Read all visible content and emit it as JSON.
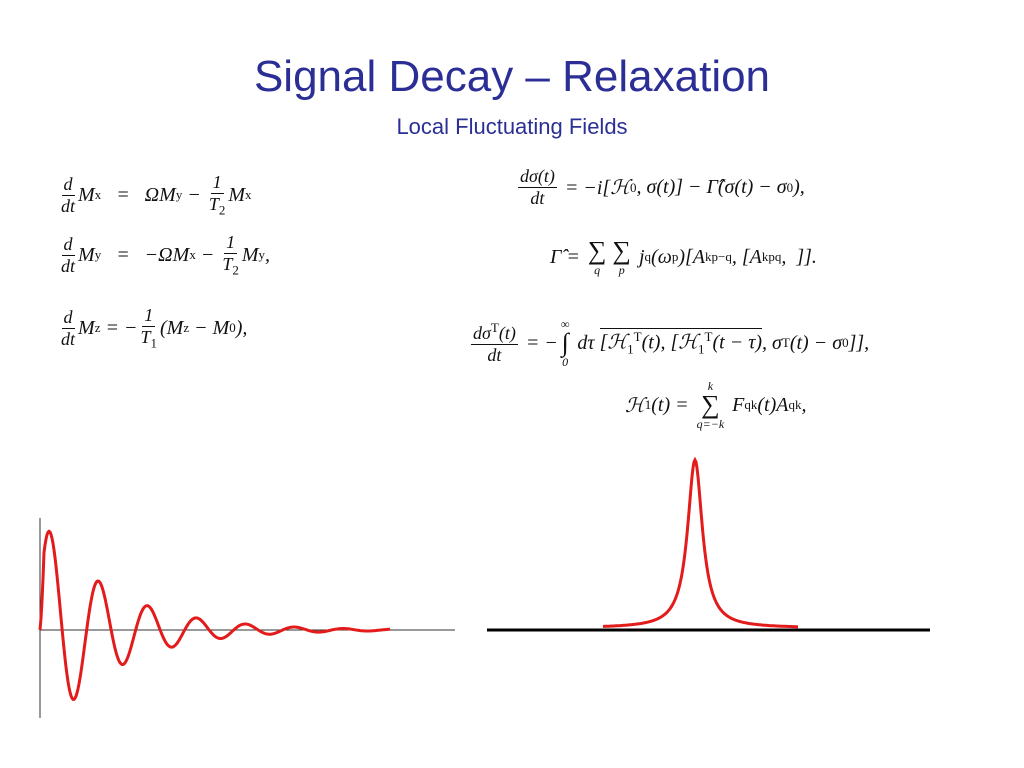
{
  "header": {
    "title": "Signal Decay – Relaxation",
    "subtitle": "Local Fluctuating Fields"
  },
  "equations_left": [
    [
      {
        "frac": [
          "d"
        ],
        "over": [
          "dt"
        ]
      },
      "M",
      {
        "sub": "x"
      },
      "   =   ΩM",
      {
        "sub": "y"
      },
      " − ",
      {
        "frac": [
          "1"
        ],
        "over": [
          "T",
          {
            "sub": "2"
          }
        ]
      },
      "M",
      {
        "sub": "x"
      }
    ],
    [
      {
        "frac": [
          "d"
        ],
        "over": [
          "dt"
        ]
      },
      "M",
      {
        "sub": "y"
      },
      "   =   −ΩM",
      {
        "sub": "x"
      },
      " − ",
      {
        "frac": [
          "1"
        ],
        "over": [
          "T",
          {
            "sub": "2"
          }
        ]
      },
      "M",
      {
        "sub": "y"
      },
      ","
    ],
    [
      {
        "frac": [
          "d"
        ],
        "over": [
          "dt"
        ]
      },
      "M",
      {
        "sub": "z"
      },
      " = −",
      {
        "frac": [
          "1"
        ],
        "over": [
          "T",
          {
            "sub": "1"
          }
        ]
      },
      "(M",
      {
        "sub": "z"
      },
      " − M",
      {
        "sub": "0"
      },
      "),"
    ]
  ],
  "equations_right": [
    [
      {
        "frac": [
          "dσ(t)"
        ],
        "over": [
          "dt"
        ]
      },
      " = −i[ℋ",
      {
        "sub": "0"
      },
      ", σ(t)] − Γ̂(σ(t) − σ",
      {
        "sub": "0"
      },
      "),"
    ],
    [
      "Γ̂ = ",
      {
        "op": "∑",
        "below": "q"
      },
      {
        "op": "∑",
        "below": "p"
      },
      " j",
      {
        "sup": "q"
      },
      "(ω",
      {
        "sub": "p"
      },
      ")[A",
      {
        "sub": "kp"
      },
      {
        "sup": "−q"
      },
      ", [A",
      {
        "sub": "kp"
      },
      {
        "sup": "q"
      },
      ",  ]]."
    ],
    [
      {
        "frac": [
          "dσ",
          {
            "sup": "T"
          },
          "(t)"
        ],
        "over": [
          "dt"
        ]
      },
      " = −",
      {
        "op": "∫",
        "below": "0",
        "above": "∞"
      },
      " dτ ",
      {
        "bar": [
          "[ℋ",
          {
            "sub": "1"
          },
          {
            "sup": "T"
          },
          "(t), [ℋ",
          {
            "sub": "1"
          },
          {
            "sup": "T"
          },
          "(t − τ)"
        ]
      },
      ", σ",
      {
        "sup": "T"
      },
      "(t) − σ",
      {
        "sub": "0"
      },
      "]],"
    ],
    [
      "ℋ",
      {
        "sub": "1"
      },
      "(t) = ",
      {
        "op": "∑",
        "below": "q=−k",
        "above": "k"
      },
      " F",
      {
        "sup": "q"
      },
      {
        "sub": "k"
      },
      "(t)A",
      {
        "sup": "q"
      },
      {
        "sub": "k"
      },
      ","
    ]
  ]
}
